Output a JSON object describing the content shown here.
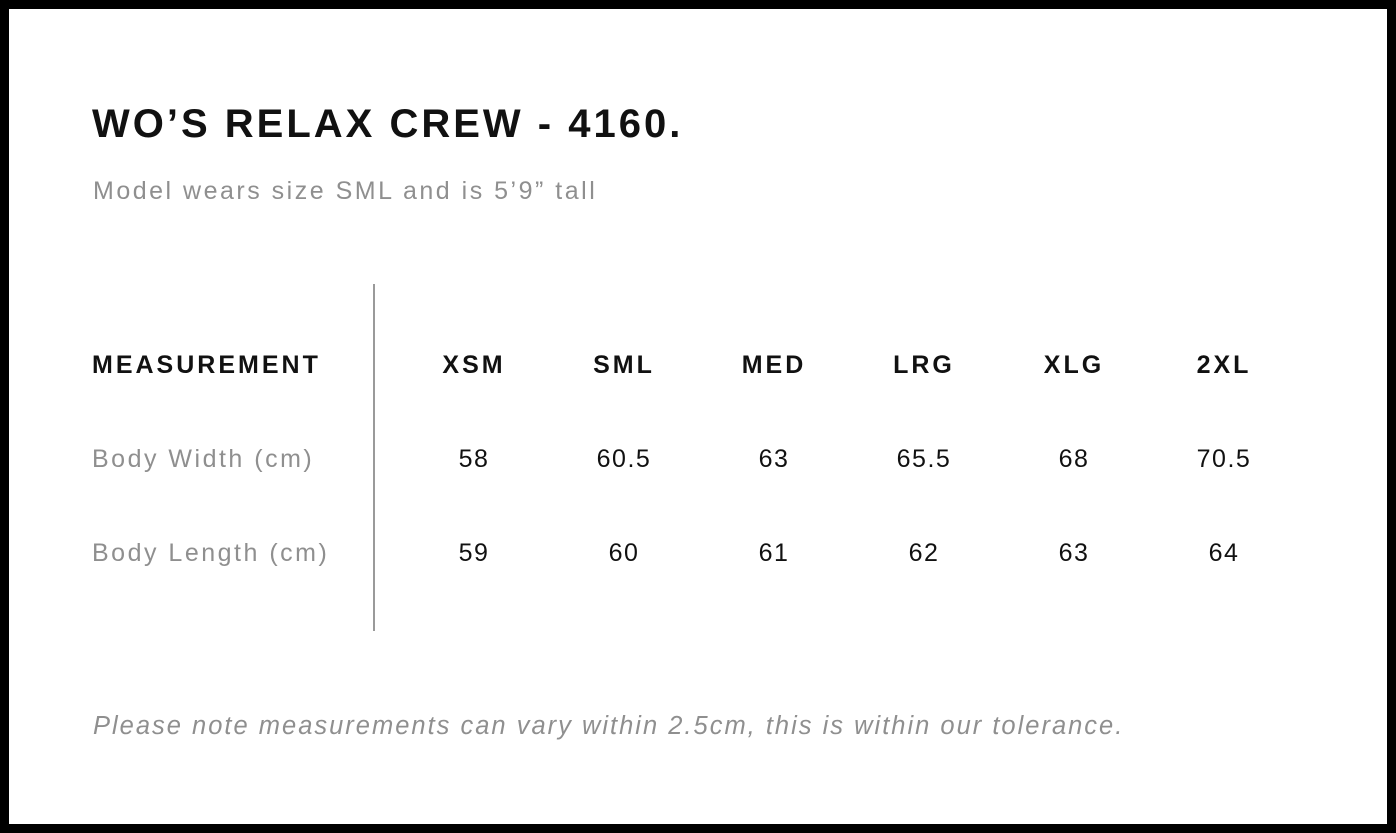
{
  "page": {
    "title": "WO’S RELAX CREW - 4160.",
    "subtitle": "Model wears size SML and is 5’9” tall",
    "tolerance_note": "Please note measurements can vary within 2.5cm, this is within our tolerance."
  },
  "size_chart": {
    "measurement_header": "MEASUREMENT",
    "size_headers": [
      "XSM",
      "SML",
      "MED",
      "LRG",
      "XLG",
      "2XL"
    ],
    "rows": [
      {
        "label": "Body Width (cm)",
        "values": [
          "58",
          "60.5",
          "63",
          "65.5",
          "68",
          "70.5"
        ]
      },
      {
        "label": "Body Length (cm)",
        "values": [
          "59",
          "60",
          "61",
          "62",
          "63",
          "64"
        ]
      }
    ]
  },
  "chart_data": {
    "type": "table",
    "title": "WO’S RELAX CREW - 4160.",
    "categories": [
      "XSM",
      "SML",
      "MED",
      "LRG",
      "XLG",
      "2XL"
    ],
    "series": [
      {
        "name": "Body Width (cm)",
        "values": [
          58,
          60.5,
          63,
          65.5,
          68,
          70.5
        ]
      },
      {
        "name": "Body Length (cm)",
        "values": [
          59,
          60,
          61,
          62,
          63,
          64
        ]
      }
    ]
  },
  "colors": {
    "text_black": "#111111",
    "text_gray": "#8f8f8f",
    "divider_gray": "#9a9a9a",
    "frame_black": "#000000",
    "background": "#ffffff"
  }
}
